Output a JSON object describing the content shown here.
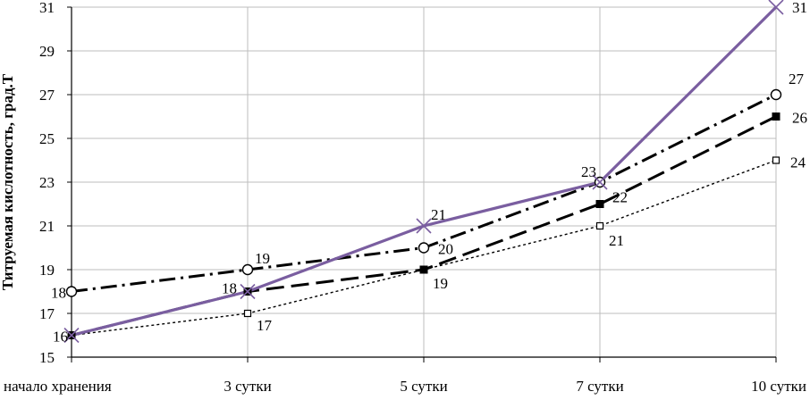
{
  "chart_data": {
    "type": "line",
    "title": "",
    "xlabel": "",
    "ylabel": "Титруемая кислотность, град.Т",
    "categories": [
      "начало хранения",
      "3 сутки",
      "5 сутки",
      "7 сутки",
      "10 сутки"
    ],
    "ylim": [
      15,
      31
    ],
    "yticks": [
      15,
      17,
      19,
      21,
      23,
      25,
      27,
      29,
      31
    ],
    "grid": true,
    "legend": "none",
    "series": [
      {
        "values": [
          16,
          17,
          19,
          21,
          24
        ],
        "labels": [
          "",
          "17",
          "19",
          "21",
          "24"
        ],
        "color": "#000000",
        "line_style": "dotted",
        "marker": "open-square"
      },
      {
        "values": [
          16,
          18,
          19,
          22,
          26
        ],
        "labels": [
          "",
          "",
          "",
          "22",
          "26"
        ],
        "color": "#000000",
        "line_style": "long-dash",
        "marker": "filled-square"
      },
      {
        "values": [
          18,
          19,
          20,
          23,
          27
        ],
        "labels": [
          "18",
          "19",
          "20",
          "",
          "27"
        ],
        "color": "#000000",
        "line_style": "dash-dot",
        "marker": "open-circle"
      },
      {
        "values": [
          16,
          18,
          21,
          23,
          31
        ],
        "labels": [
          "16",
          "18",
          "21",
          "23",
          "31"
        ],
        "color": "#7a5ea0",
        "line_style": "solid",
        "marker": "x"
      }
    ]
  }
}
